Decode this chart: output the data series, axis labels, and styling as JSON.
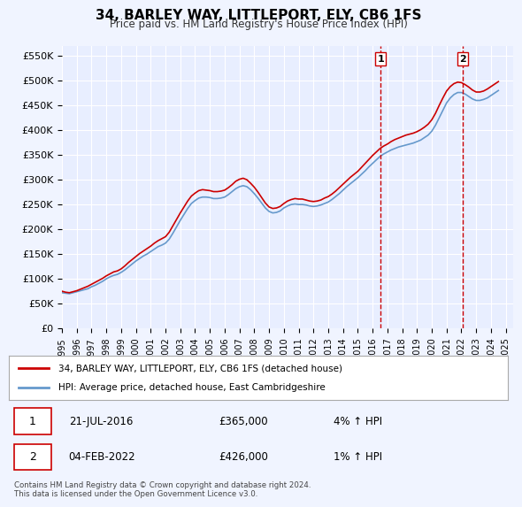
{
  "title": "34, BARLEY WAY, LITTLEPORT, ELY, CB6 1FS",
  "subtitle": "Price paid vs. HM Land Registry's House Price Index (HPI)",
  "ylabel_ticks": [
    "£0",
    "£50K",
    "£100K",
    "£150K",
    "£200K",
    "£250K",
    "£300K",
    "£350K",
    "£400K",
    "£450K",
    "£500K",
    "£550K"
  ],
  "ytick_values": [
    0,
    50000,
    100000,
    150000,
    200000,
    250000,
    300000,
    350000,
    400000,
    450000,
    500000,
    550000
  ],
  "ylim": [
    0,
    570000
  ],
  "xlim_start": 1995.0,
  "xlim_end": 2025.5,
  "background_color": "#f0f4ff",
  "plot_bg_color": "#e8eeff",
  "grid_color": "#ffffff",
  "red_line_color": "#cc0000",
  "blue_line_color": "#6699cc",
  "vline_color": "#cc0000",
  "marker1_x": 2016.55,
  "marker2_x": 2022.09,
  "marker1_y": 365000,
  "marker2_y": 426000,
  "legend_entry1": "34, BARLEY WAY, LITTLEPORT, ELY, CB6 1FS (detached house)",
  "legend_entry2": "HPI: Average price, detached house, East Cambridgeshire",
  "table_row1_num": "1",
  "table_row1_date": "21-JUL-2016",
  "table_row1_price": "£365,000",
  "table_row1_hpi": "4% ↑ HPI",
  "table_row2_num": "2",
  "table_row2_date": "04-FEB-2022",
  "table_row2_price": "£426,000",
  "table_row2_hpi": "1% ↑ HPI",
  "footer": "Contains HM Land Registry data © Crown copyright and database right 2024.\nThis data is licensed under the Open Government Licence v3.0.",
  "hpi_x": [
    1995.0,
    1995.25,
    1995.5,
    1995.75,
    1996.0,
    1996.25,
    1996.5,
    1996.75,
    1997.0,
    1997.25,
    1997.5,
    1997.75,
    1998.0,
    1998.25,
    1998.5,
    1998.75,
    1999.0,
    1999.25,
    1999.5,
    1999.75,
    2000.0,
    2000.25,
    2000.5,
    2000.75,
    2001.0,
    2001.25,
    2001.5,
    2001.75,
    2002.0,
    2002.25,
    2002.5,
    2002.75,
    2003.0,
    2003.25,
    2003.5,
    2003.75,
    2004.0,
    2004.25,
    2004.5,
    2004.75,
    2005.0,
    2005.25,
    2005.5,
    2005.75,
    2006.0,
    2006.25,
    2006.5,
    2006.75,
    2007.0,
    2007.25,
    2007.5,
    2007.75,
    2008.0,
    2008.25,
    2008.5,
    2008.75,
    2009.0,
    2009.25,
    2009.5,
    2009.75,
    2010.0,
    2010.25,
    2010.5,
    2010.75,
    2011.0,
    2011.25,
    2011.5,
    2011.75,
    2012.0,
    2012.25,
    2012.5,
    2012.75,
    2013.0,
    2013.25,
    2013.5,
    2013.75,
    2014.0,
    2014.25,
    2014.5,
    2014.75,
    2015.0,
    2015.25,
    2015.5,
    2015.75,
    2016.0,
    2016.25,
    2016.5,
    2016.75,
    2017.0,
    2017.25,
    2017.5,
    2017.75,
    2018.0,
    2018.25,
    2018.5,
    2018.75,
    2019.0,
    2019.25,
    2019.5,
    2019.75,
    2020.0,
    2020.25,
    2020.5,
    2020.75,
    2021.0,
    2021.25,
    2021.5,
    2021.75,
    2022.0,
    2022.25,
    2022.5,
    2022.75,
    2023.0,
    2023.25,
    2023.5,
    2023.75,
    2024.0,
    2024.25,
    2024.5
  ],
  "hpi_y": [
    72000,
    71000,
    70000,
    72000,
    74000,
    76000,
    78000,
    80000,
    84000,
    87000,
    91000,
    95000,
    100000,
    104000,
    107000,
    109000,
    113000,
    118000,
    124000,
    130000,
    136000,
    141000,
    146000,
    150000,
    155000,
    160000,
    165000,
    168000,
    172000,
    180000,
    192000,
    205000,
    218000,
    230000,
    242000,
    252000,
    258000,
    263000,
    265000,
    265000,
    264000,
    262000,
    262000,
    263000,
    265000,
    270000,
    276000,
    282000,
    286000,
    288000,
    286000,
    280000,
    272000,
    263000,
    253000,
    243000,
    236000,
    233000,
    234000,
    237000,
    243000,
    247000,
    250000,
    251000,
    250000,
    250000,
    249000,
    247000,
    246000,
    247000,
    249000,
    252000,
    255000,
    260000,
    266000,
    272000,
    279000,
    286000,
    292000,
    298000,
    304000,
    311000,
    318000,
    326000,
    333000,
    340000,
    347000,
    352000,
    356000,
    360000,
    363000,
    366000,
    368000,
    370000,
    372000,
    374000,
    377000,
    380000,
    385000,
    390000,
    398000,
    410000,
    425000,
    440000,
    455000,
    465000,
    472000,
    476000,
    476000,
    473000,
    468000,
    463000,
    460000,
    460000,
    462000,
    465000,
    470000,
    475000,
    480000
  ],
  "price_x": [
    1995.0,
    1995.25,
    1995.5,
    1995.75,
    1996.0,
    1996.25,
    1996.5,
    1996.75,
    1997.0,
    1997.25,
    1997.5,
    1997.75,
    1998.0,
    1998.25,
    1998.5,
    1998.75,
    1999.0,
    1999.25,
    1999.5,
    1999.75,
    2000.0,
    2000.25,
    2000.5,
    2000.75,
    2001.0,
    2001.25,
    2001.5,
    2001.75,
    2002.0,
    2002.25,
    2002.5,
    2002.75,
    2003.0,
    2003.25,
    2003.5,
    2003.75,
    2004.0,
    2004.25,
    2004.5,
    2004.75,
    2005.0,
    2005.25,
    2005.5,
    2005.75,
    2006.0,
    2006.25,
    2006.5,
    2006.75,
    2007.0,
    2007.25,
    2007.5,
    2007.75,
    2008.0,
    2008.25,
    2008.5,
    2008.75,
    2009.0,
    2009.25,
    2009.5,
    2009.75,
    2010.0,
    2010.25,
    2010.5,
    2010.75,
    2011.0,
    2011.25,
    2011.5,
    2011.75,
    2012.0,
    2012.25,
    2012.5,
    2012.75,
    2013.0,
    2013.25,
    2013.5,
    2013.75,
    2014.0,
    2014.25,
    2014.5,
    2014.75,
    2015.0,
    2015.25,
    2015.5,
    2015.75,
    2016.0,
    2016.25,
    2016.5,
    2016.75,
    2017.0,
    2017.25,
    2017.5,
    2017.75,
    2018.0,
    2018.25,
    2018.5,
    2018.75,
    2019.0,
    2019.25,
    2019.5,
    2019.75,
    2020.0,
    2020.25,
    2020.5,
    2020.75,
    2021.0,
    2021.25,
    2021.5,
    2021.75,
    2022.0,
    2022.25,
    2022.5,
    2022.75,
    2023.0,
    2023.25,
    2023.5,
    2023.75,
    2024.0,
    2024.25,
    2024.5
  ],
  "price_y": [
    75000,
    73000,
    72000,
    74000,
    76000,
    79000,
    82000,
    85000,
    89000,
    93000,
    97000,
    101000,
    106000,
    110000,
    114000,
    116000,
    120000,
    126000,
    133000,
    139000,
    145000,
    151000,
    156000,
    161000,
    166000,
    172000,
    177000,
    181000,
    185000,
    194000,
    207000,
    220000,
    233000,
    245000,
    257000,
    267000,
    273000,
    278000,
    280000,
    279000,
    278000,
    276000,
    276000,
    277000,
    279000,
    284000,
    290000,
    297000,
    301000,
    303000,
    300000,
    293000,
    285000,
    275000,
    264000,
    253000,
    245000,
    242000,
    243000,
    246000,
    252000,
    257000,
    260000,
    262000,
    261000,
    261000,
    259000,
    257000,
    256000,
    257000,
    259000,
    263000,
    266000,
    271000,
    277000,
    284000,
    291000,
    298000,
    305000,
    311000,
    317000,
    325000,
    333000,
    341000,
    349000,
    356000,
    363000,
    368000,
    372000,
    377000,
    381000,
    384000,
    387000,
    390000,
    392000,
    394000,
    397000,
    401000,
    406000,
    412000,
    421000,
    434000,
    450000,
    465000,
    479000,
    488000,
    494000,
    497000,
    496000,
    492000,
    487000,
    481000,
    477000,
    477000,
    479000,
    483000,
    488000,
    493000,
    498000
  ]
}
